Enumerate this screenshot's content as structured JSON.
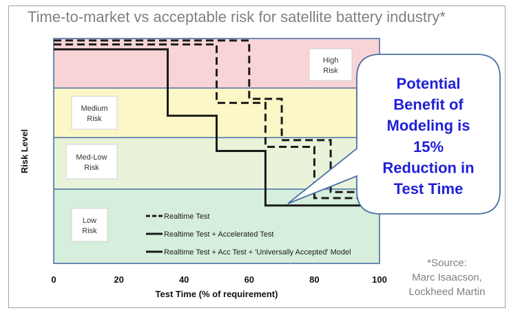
{
  "chart_data": {
    "type": "line",
    "title": "Time-to-market vs acceptable risk for satellite battery industry*",
    "xlabel": "Test Time (% of requirement)",
    "ylabel": "Risk Level",
    "xlim": [
      0,
      100
    ],
    "x_ticks": [
      "0",
      "20",
      "40",
      "60",
      "80",
      "100"
    ],
    "grid": false,
    "legend_position": "bottom-center",
    "risk_zones": [
      {
        "label": "High Risk",
        "color": "#f9d4d6",
        "range": [
          3,
          4
        ]
      },
      {
        "label": "Medium Risk",
        "color": "#fbf7c6",
        "range": [
          2,
          3
        ]
      },
      {
        "label": "Med-Low Risk",
        "color": "#e8f3da",
        "range": [
          1,
          2
        ]
      },
      {
        "label": "Low Risk",
        "color": "#d6eedc",
        "range": [
          0,
          1
        ]
      }
    ],
    "series": [
      {
        "name": "Realtime Test",
        "style": "dashed",
        "points": [
          [
            0,
            3.96
          ],
          [
            60,
            3.96
          ],
          [
            60,
            2.78
          ],
          [
            70,
            2.78
          ],
          [
            70,
            1.95
          ],
          [
            85,
            1.95
          ],
          [
            85,
            0.96
          ],
          [
            100,
            0.96
          ]
        ]
      },
      {
        "name": "Realtime Test + Accelerated Test",
        "style": "dashed",
        "points": [
          [
            0,
            3.88
          ],
          [
            50,
            3.88
          ],
          [
            50,
            2.7
          ],
          [
            65,
            2.7
          ],
          [
            65,
            1.82
          ],
          [
            80,
            1.82
          ],
          [
            80,
            0.88
          ],
          [
            100,
            0.88
          ]
        ]
      },
      {
        "name": "Realtime Test + Acc Test + 'Universally Accepted' Model",
        "style": "solid",
        "points": [
          [
            0,
            3.78
          ],
          [
            35,
            3.78
          ],
          [
            35,
            2.44
          ],
          [
            50,
            2.44
          ],
          [
            50,
            1.74
          ],
          [
            65,
            1.74
          ],
          [
            65,
            0.78
          ],
          [
            100,
            0.78
          ]
        ]
      }
    ],
    "annotations": [
      {
        "text": [
          "Potential",
          "Benefit of",
          "Modeling is",
          "15%",
          "Reduction in",
          "Test Time"
        ],
        "color": "#1f1fd8"
      }
    ]
  },
  "source": {
    "lines": [
      "*Source:",
      "Marc Isaacson,",
      "Lockheed Martin"
    ]
  }
}
